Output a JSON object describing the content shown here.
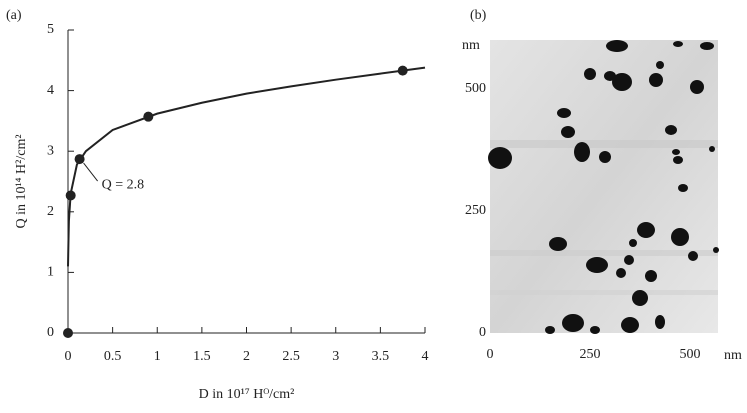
{
  "chart_data": [
    {
      "type": "line",
      "label": "(a)",
      "ylabel": "Q in 10¹⁴ H²/cm²",
      "xlabel": "D in 10¹⁷ Hᴼ/cm²",
      "xlim": [
        0,
        4
      ],
      "xticks": [
        0,
        0.5,
        1,
        1.5,
        2,
        2.5,
        3,
        3.5,
        4
      ],
      "ylim": [
        0,
        5
      ],
      "yticks": [
        0,
        1,
        2,
        3,
        4,
        5
      ],
      "color": "#222222",
      "points": {
        "x": [
          0,
          0.03,
          0.13,
          0.9,
          3.75
        ],
        "y": [
          0,
          2.27,
          2.87,
          3.57,
          4.33
        ]
      },
      "curve": {
        "x": [
          0,
          0.005,
          0.01,
          0.03,
          0.1,
          0.2,
          0.5,
          1,
          1.5,
          2,
          2.5,
          3,
          3.5,
          4
        ],
        "y": [
          1.1,
          1.5,
          1.85,
          2.3,
          2.78,
          3.0,
          3.35,
          3.62,
          3.8,
          3.95,
          4.07,
          4.18,
          4.28,
          4.38
        ]
      },
      "annotation": {
        "text": "Q = 2.8",
        "point": 2
      }
    },
    {
      "type": "image",
      "label": "(b)",
      "unit": "nm",
      "xlim": [
        0,
        570
      ],
      "xticks": [
        0,
        250,
        500
      ],
      "ylim": [
        0,
        600
      ],
      "yticks": [
        0,
        250,
        500
      ]
    }
  ]
}
